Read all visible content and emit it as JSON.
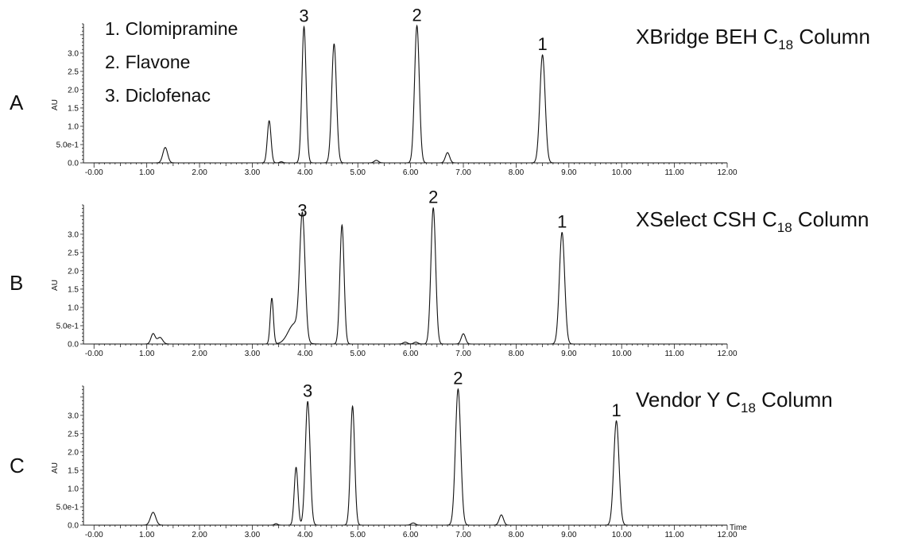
{
  "legend": [
    {
      "id": "1",
      "label": "1. Clomipramine"
    },
    {
      "id": "2",
      "label": "2. Flavone"
    },
    {
      "id": "3",
      "label": "3. Diclofenac"
    }
  ],
  "chart_data": [
    {
      "type": "line",
      "panel_label": "A",
      "column_title": {
        "pre": "XBridge BEH C",
        "sub": "18",
        "post": " Column"
      },
      "ylabel": "AU",
      "xlabel": "",
      "xlim": [
        -0.2,
        12.0
      ],
      "ylim": [
        0,
        3.8
      ],
      "x_ticks": [
        "-0.00",
        "1.00",
        "2.00",
        "3.00",
        "4.00",
        "5.00",
        "6.00",
        "7.00",
        "8.00",
        "9.00",
        "10.00",
        "11.00",
        "12.00"
      ],
      "y_ticks": [
        {
          "v": 0,
          "t": "0.0"
        },
        {
          "v": 0.5,
          "t": "5.0e-1"
        },
        {
          "v": 1.0,
          "t": "1.0"
        },
        {
          "v": 1.5,
          "t": "1.5"
        },
        {
          "v": 2.0,
          "t": "2.0"
        },
        {
          "v": 2.5,
          "t": "2.5"
        },
        {
          "v": 3.0,
          "t": "3.0"
        }
      ],
      "peaks": [
        {
          "rt": 1.35,
          "height": 0.42,
          "width": 0.045
        },
        {
          "rt": 3.32,
          "height": 1.15,
          "width": 0.035
        },
        {
          "rt": 3.55,
          "height": 0.03,
          "width": 0.03
        },
        {
          "rt": 3.98,
          "height": 3.72,
          "width": 0.04
        },
        {
          "rt": 4.55,
          "height": 3.25,
          "width": 0.045
        },
        {
          "rt": 5.35,
          "height": 0.07,
          "width": 0.04
        },
        {
          "rt": 6.12,
          "height": 3.75,
          "width": 0.045
        },
        {
          "rt": 6.7,
          "height": 0.28,
          "width": 0.04
        },
        {
          "rt": 8.5,
          "height": 2.95,
          "width": 0.05
        }
      ],
      "peak_labels": [
        {
          "text": "3",
          "rt": 3.98,
          "height": 3.72
        },
        {
          "text": "2",
          "rt": 6.12,
          "height": 3.75
        },
        {
          "text": "1",
          "rt": 8.5,
          "height": 2.95
        }
      ]
    },
    {
      "type": "line",
      "panel_label": "B",
      "column_title": {
        "pre": "XSelect CSH C",
        "sub": "18",
        "post": " Column"
      },
      "ylabel": "AU",
      "xlabel": "",
      "xlim": [
        -0.2,
        12.0
      ],
      "ylim": [
        0,
        3.8
      ],
      "x_ticks": [
        "-0.00",
        "1.00",
        "2.00",
        "3.00",
        "4.00",
        "5.00",
        "6.00",
        "7.00",
        "8.00",
        "9.00",
        "10.00",
        "11.00",
        "12.00"
      ],
      "y_ticks": [
        {
          "v": 0,
          "t": "0.0"
        },
        {
          "v": 0.5,
          "t": "5.0e-1"
        },
        {
          "v": 1.0,
          "t": "1.0"
        },
        {
          "v": 1.5,
          "t": "1.5"
        },
        {
          "v": 2.0,
          "t": "2.0"
        },
        {
          "v": 2.5,
          "t": "2.5"
        },
        {
          "v": 3.0,
          "t": "3.0"
        }
      ],
      "peaks": [
        {
          "rt": 1.12,
          "height": 0.28,
          "width": 0.04
        },
        {
          "rt": 1.25,
          "height": 0.18,
          "width": 0.05
        },
        {
          "rt": 3.37,
          "height": 1.25,
          "width": 0.03
        },
        {
          "rt": 3.95,
          "height": 3.35,
          "width": 0.05
        },
        {
          "rt": 3.8,
          "height": 0.55,
          "width": 0.12
        },
        {
          "rt": 4.7,
          "height": 3.25,
          "width": 0.04
        },
        {
          "rt": 5.9,
          "height": 0.05,
          "width": 0.04
        },
        {
          "rt": 6.1,
          "height": 0.05,
          "width": 0.04
        },
        {
          "rt": 6.43,
          "height": 3.72,
          "width": 0.045
        },
        {
          "rt": 7.0,
          "height": 0.28,
          "width": 0.04
        },
        {
          "rt": 8.87,
          "height": 3.05,
          "width": 0.05
        }
      ],
      "peak_labels": [
        {
          "text": "3",
          "rt": 3.95,
          "height": 3.35
        },
        {
          "text": "2",
          "rt": 6.43,
          "height": 3.72
        },
        {
          "text": "1",
          "rt": 8.87,
          "height": 3.05
        }
      ]
    },
    {
      "type": "line",
      "panel_label": "C",
      "column_title": {
        "pre": "Vendor Y C",
        "sub": "18",
        "post": " Column"
      },
      "ylabel": "AU",
      "xlabel": "Time",
      "xlim": [
        -0.2,
        12.0
      ],
      "ylim": [
        0,
        3.8
      ],
      "x_ticks": [
        "-0.00",
        "1.00",
        "2.00",
        "3.00",
        "4.00",
        "5.00",
        "6.00",
        "7.00",
        "8.00",
        "9.00",
        "10.00",
        "11.00",
        "12.00"
      ],
      "y_ticks": [
        {
          "v": 0,
          "t": "0.0"
        },
        {
          "v": 0.5,
          "t": "5.0e-1"
        },
        {
          "v": 1.0,
          "t": "1.0"
        },
        {
          "v": 1.5,
          "t": "1.5"
        },
        {
          "v": 2.0,
          "t": "2.0"
        },
        {
          "v": 2.5,
          "t": "2.5"
        },
        {
          "v": 3.0,
          "t": "3.0"
        }
      ],
      "peaks": [
        {
          "rt": 1.12,
          "height": 0.35,
          "width": 0.05
        },
        {
          "rt": 3.45,
          "height": 0.04,
          "width": 0.03
        },
        {
          "rt": 3.83,
          "height": 1.58,
          "width": 0.035
        },
        {
          "rt": 4.05,
          "height": 3.38,
          "width": 0.045
        },
        {
          "rt": 4.9,
          "height": 3.25,
          "width": 0.04
        },
        {
          "rt": 6.05,
          "height": 0.06,
          "width": 0.04
        },
        {
          "rt": 6.9,
          "height": 3.72,
          "width": 0.05
        },
        {
          "rt": 7.72,
          "height": 0.28,
          "width": 0.04
        },
        {
          "rt": 9.9,
          "height": 2.85,
          "width": 0.05
        }
      ],
      "peak_labels": [
        {
          "text": "3",
          "rt": 4.05,
          "height": 3.38
        },
        {
          "text": "2",
          "rt": 6.9,
          "height": 3.72
        },
        {
          "text": "1",
          "rt": 9.9,
          "height": 2.85
        }
      ]
    }
  ]
}
